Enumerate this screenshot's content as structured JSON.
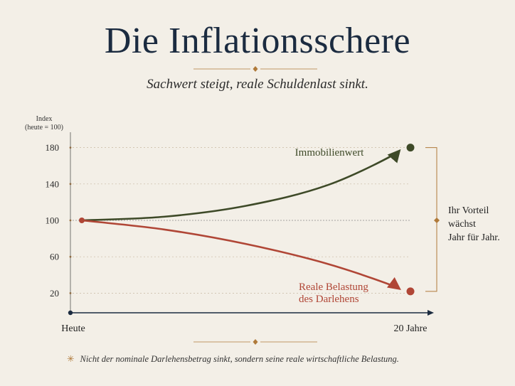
{
  "title": "Die Inflationsschere",
  "subtitle": "Sachwert steigt, reale Schuldenlast sinkt.",
  "footnote": {
    "symbol": "✳",
    "text": "Nicht der nominale Darlehensbetrag sinkt, sondern seine reale wirtschaftliche Belastung."
  },
  "annotation": [
    "Ihr Vorteil",
    "wächst",
    "Jahr für Jahr."
  ],
  "colors": {
    "title": "#1b2b40",
    "series_green": "#3e4a28",
    "series_red": "#b04636",
    "accent": "#b07a3a",
    "axis": "#1b2b40",
    "background": "#f3efe7"
  },
  "chart_data": {
    "type": "line",
    "ylabel": [
      "Index",
      "(heute = 100)"
    ],
    "yticks": [
      20,
      60,
      100,
      140,
      180
    ],
    "ylim": [
      0,
      195
    ],
    "x_tick_labels": [
      "Heute",
      "20 Jahre"
    ],
    "x": [
      0,
      20
    ],
    "grid": true,
    "series": [
      {
        "name": "Immobilienwert",
        "color": "#3e4a28",
        "points": [
          [
            0,
            100
          ],
          [
            5,
            104
          ],
          [
            10,
            116
          ],
          [
            15,
            139
          ],
          [
            20,
            180
          ]
        ]
      },
      {
        "name": "Reale Belastung des Darlehens",
        "label_lines": [
          "Reale Belastung",
          "des Darlehens"
        ],
        "color": "#b04636",
        "points": [
          [
            0,
            100
          ],
          [
            5,
            90
          ],
          [
            10,
            74
          ],
          [
            15,
            52
          ],
          [
            20,
            22
          ]
        ]
      }
    ]
  }
}
